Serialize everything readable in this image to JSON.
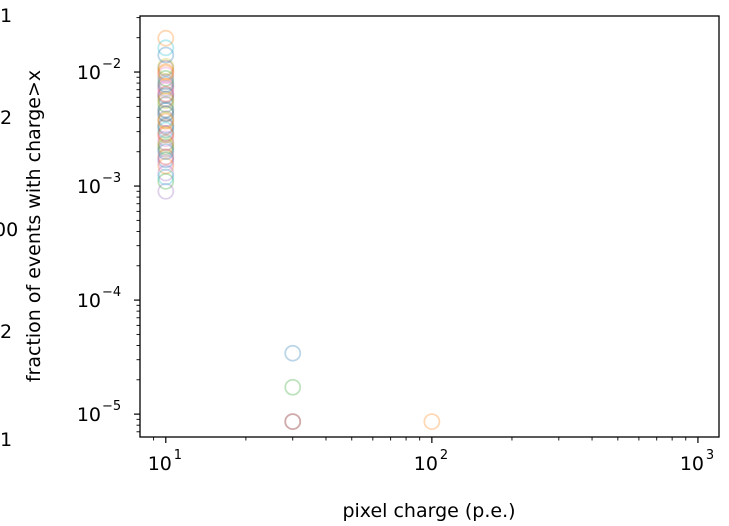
{
  "chart_data": {
    "type": "scatter",
    "title": "",
    "xlabel": "pixel charge (p.e.)",
    "ylabel": "fraction of events with charge>x",
    "xscale": "log",
    "yscale": "log",
    "xlim": [
      8.0,
      1200
    ],
    "ylim": [
      6.3e-06,
      0.031
    ],
    "grid": false,
    "legend": "none",
    "marker": "open-circle",
    "x_ticks": [
      {
        "value": 10,
        "base": "10",
        "exp": "1"
      },
      {
        "value": 100,
        "base": "10",
        "exp": "2"
      },
      {
        "value": 1000,
        "base": "10",
        "exp": "3"
      }
    ],
    "y_ticks": [
      {
        "value": 1e-05,
        "base": "10",
        "exp": "−5"
      },
      {
        "value": 0.0001,
        "base": "10",
        "exp": "−4"
      },
      {
        "value": 0.001,
        "base": "10",
        "exp": "−3"
      },
      {
        "value": 0.01,
        "base": "10",
        "exp": "−2"
      }
    ],
    "left_edge_labels": [
      "1",
      "2",
      "00",
      "2",
      "1"
    ],
    "series": [
      {
        "color": "#1f77b4",
        "points": [
          [
            10,
            0.0034
          ],
          [
            10,
            0.0046
          ],
          [
            10,
            0.0017
          ],
          [
            10,
            0.0062
          ],
          [
            30,
            3.42e-05
          ]
        ]
      },
      {
        "color": "#ff7f0e",
        "points": [
          [
            10,
            0.0098
          ],
          [
            10,
            0.0028
          ],
          [
            10,
            0.0075
          ],
          [
            10,
            0.0015
          ],
          [
            100,
            8.6e-06
          ]
        ]
      },
      {
        "color": "#2ca02c",
        "points": [
          [
            10,
            0.0052
          ],
          [
            10,
            0.0022
          ],
          [
            10,
            0.0088
          ],
          [
            10,
            0.0011
          ],
          [
            30,
            1.72e-05
          ]
        ]
      },
      {
        "color": "#d62728",
        "points": [
          [
            10,
            0.0064
          ],
          [
            10,
            0.0029
          ],
          [
            10,
            0.0018
          ],
          [
            10,
            0.0043
          ],
          [
            30,
            8.6e-06
          ]
        ]
      },
      {
        "color": "#9467bd",
        "points": [
          [
            10,
            0.0009
          ],
          [
            10,
            0.0039
          ],
          [
            10,
            0.0072
          ],
          [
            10,
            0.0013
          ]
        ]
      },
      {
        "color": "#8c564b",
        "points": [
          [
            10,
            0.0108
          ],
          [
            10,
            0.0033
          ],
          [
            10,
            0.0058
          ],
          [
            10,
            0.0024
          ]
        ]
      },
      {
        "color": "#e377c2",
        "points": [
          [
            10,
            0.0069
          ],
          [
            10,
            0.0026
          ],
          [
            10,
            0.0016
          ],
          [
            10,
            0.0094
          ]
        ]
      },
      {
        "color": "#7f7f7f",
        "points": [
          [
            10,
            0.0021
          ],
          [
            10,
            0.0082
          ],
          [
            10,
            0.0047
          ],
          [
            30,
            8.6e-06
          ]
        ]
      },
      {
        "color": "#bcbd22",
        "points": [
          [
            10,
            0.0112
          ],
          [
            10,
            0.0038
          ],
          [
            10,
            0.0056
          ],
          [
            10,
            0.0023
          ]
        ]
      },
      {
        "color": "#17becf",
        "points": [
          [
            10,
            0.0163
          ],
          [
            10,
            0.0043
          ],
          [
            10,
            0.0031
          ],
          [
            10,
            0.0012
          ]
        ]
      },
      {
        "color": "#ff7f0e",
        "points": [
          [
            10,
            0.0198
          ],
          [
            10,
            0.0101
          ],
          [
            10,
            0.0037
          ]
        ]
      },
      {
        "color": "#1f77b4",
        "points": [
          [
            10,
            0.0141
          ],
          [
            10,
            0.0078
          ],
          [
            10,
            0.002
          ]
        ]
      }
    ]
  }
}
